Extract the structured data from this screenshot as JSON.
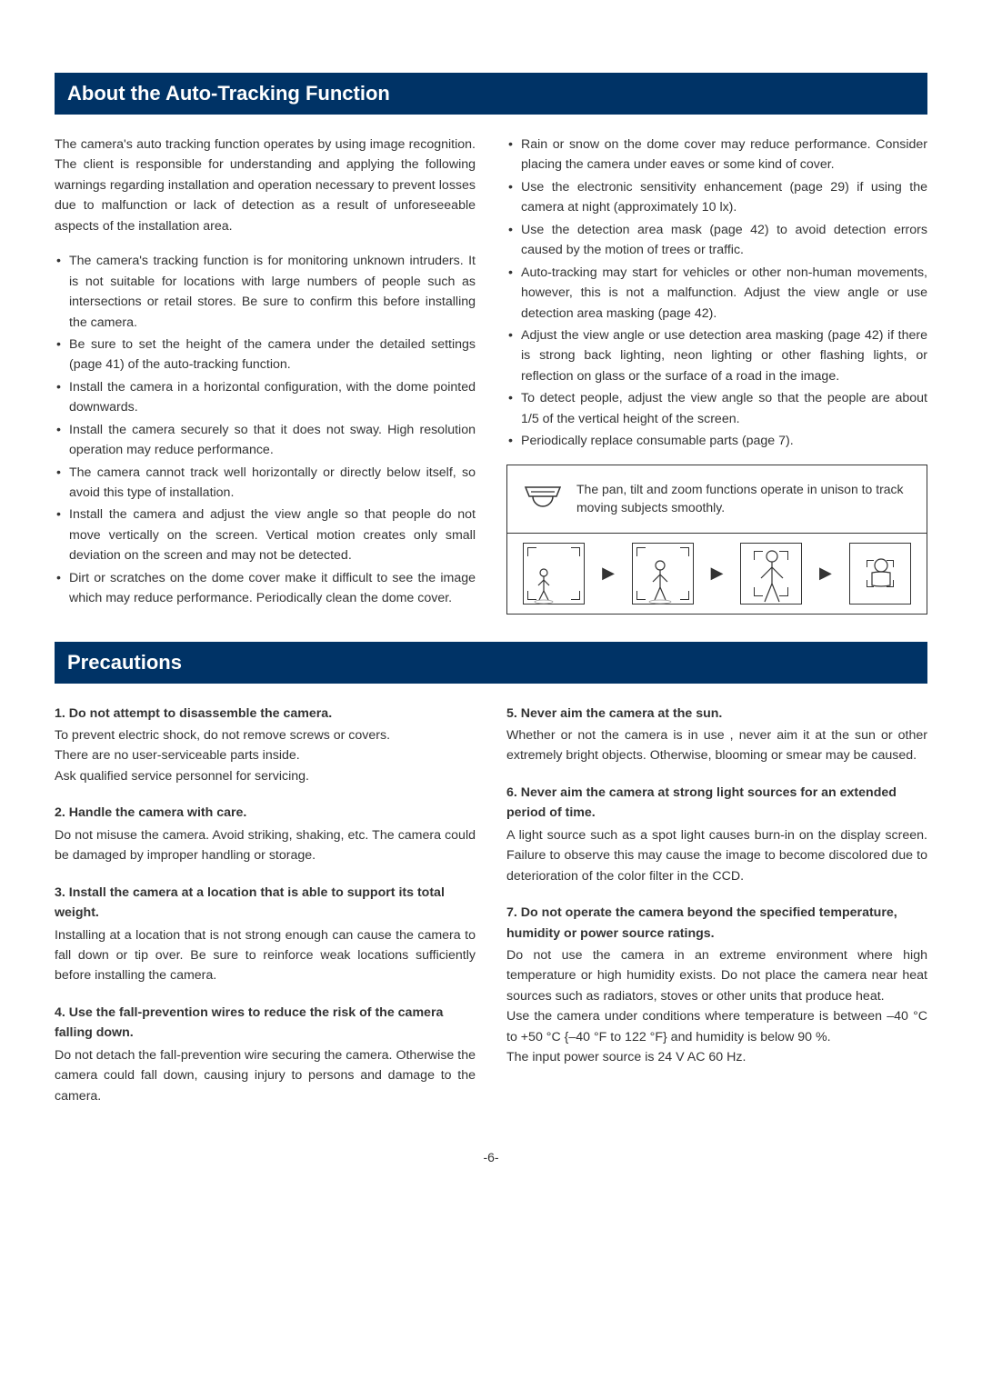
{
  "section1": {
    "title": "About the Auto-Tracking Function",
    "intro": "The camera's auto tracking function operates by using image recognition. The client is responsible for understanding and applying the following warnings regarding installation and operation necessary to prevent losses due to malfunction or lack of detection as a result of unforeseeable aspects of the installation area.",
    "left_bullets": [
      "The camera's tracking function is for monitoring unknown intruders. It is not suitable for locations with large numbers of people such as intersections or retail stores. Be sure to confirm this before installing the camera.",
      "Be sure to set the height of the camera under the detailed settings (page 41) of the auto-tracking function.",
      "Install the camera in a horizontal configuration, with the dome pointed downwards.",
      "Install the camera securely so that it does not sway. High resolution operation may reduce performance.",
      "The camera cannot track well horizontally or directly below itself, so avoid this type of installation.",
      "Install the camera and adjust the view angle so that people do not move vertically on the screen. Vertical motion creates only small deviation on the screen and may not be detected.",
      "Dirt or scratches on the dome cover make it difficult to see the image which may reduce performance. Periodically clean the dome cover."
    ],
    "right_bullets": [
      "Rain or snow on the dome cover may reduce performance. Consider placing the camera under eaves or some kind of cover.",
      "Use the electronic sensitivity enhancement (page 29) if using the camera at night (approximately 10 lx).",
      "Use the detection area mask (page 42) to avoid detection errors caused by the motion of trees or traffic.",
      "Auto-tracking may start for vehicles or other non-human movements, however, this is not a malfunction. Adjust the view angle or use detection area masking (page 42).",
      "Adjust the view angle or use detection area masking (page 42) if there is strong back lighting, neon lighting or other flashing lights, or reflection on glass or the surface of a road in the image.",
      "To detect people, adjust the view angle so that the people are about 1/5 of the vertical height of the screen.",
      "Periodically replace consumable parts (page 7)."
    ],
    "diagram_text": "The pan, tilt and zoom functions operate in unison to track moving subjects smoothly."
  },
  "section2": {
    "title": "Precautions",
    "left": [
      {
        "num": "1.",
        "title": "Do not attempt to disassemble the camera.",
        "body": "To prevent electric shock, do not remove screws or covers.\nThere are no user-serviceable parts inside.\nAsk qualified service personnel for servicing."
      },
      {
        "num": "2.",
        "title": "Handle the camera with care.",
        "body": "Do not misuse the camera. Avoid striking, shaking, etc. The camera could be damaged by improper handling or storage."
      },
      {
        "num": "3.",
        "title": "Install the camera at a location that is able to support its total weight.",
        "body": "Installing at a location that is not strong enough can cause the camera to fall down or tip over. Be sure to reinforce weak locations sufficiently before installing the camera."
      },
      {
        "num": "4.",
        "title": "Use the fall-prevention wires to reduce the risk of the camera falling down.",
        "body": "Do not detach the fall-prevention wire securing the camera. Otherwise the camera could fall down, causing injury to persons and damage to the camera."
      }
    ],
    "right": [
      {
        "num": "5.",
        "title": "Never aim the camera at the sun.",
        "body": "Whether or not the camera is in use , never aim it at the sun or other extremely bright objects. Otherwise, blooming or smear may be caused."
      },
      {
        "num": "6.",
        "title": "Never aim the camera at strong light sources for an extended period of time.",
        "body": "A light source such as a spot light causes burn-in on the display screen. Failure to observe this may cause the image to become discolored due to deterioration of the color filter in the CCD."
      },
      {
        "num": "7.",
        "title": "Do not operate the camera beyond the specified temperature, humidity or power source ratings.",
        "body": "Do not use the camera in an extreme environment where high temperature or high humidity exists. Do not place the camera near heat sources such as radiators, stoves or other units that produce heat.\nUse the camera under conditions where temperature is between –40 °C to +50 °C {–40 °F to 122 °F} and humidity is below 90 %.\nThe input power source is 24 V AC 60 Hz."
      }
    ]
  },
  "page_number": "-6-",
  "colors": {
    "header_bg": "#003366",
    "header_fg": "#ffffff",
    "body_text": "#333333"
  }
}
